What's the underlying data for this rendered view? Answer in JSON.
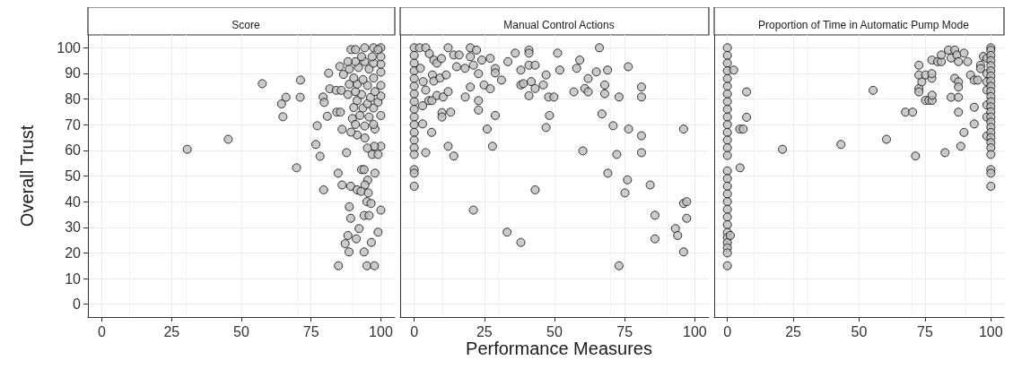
{
  "chart_data": [
    {
      "type": "scatter",
      "title": "Score",
      "ylabel": "Overall Trust",
      "marker": "circle",
      "grid": true,
      "xlim": [
        -5,
        105
      ],
      "xticks": [
        0,
        25,
        50,
        75,
        100
      ],
      "ylim": [
        -5,
        105
      ],
      "yticks": [
        0,
        10,
        20,
        30,
        40,
        50,
        60,
        70,
        80,
        90,
        100
      ],
      "series": [
        {
          "color": "#bebebe",
          "x": [
            30.6,
            45.3,
            57.5,
            71.2,
            66.0,
            71.1,
            64.4,
            64.9,
            69.8,
            77.2,
            76.7,
            78.2,
            79.5,
            81.3,
            79.3,
            79.7,
            80.8,
            81.7,
            84.0,
            85.8,
            84.2,
            85.5,
            86.1,
            87.7,
            84.7,
            86.1,
            89.2,
            91.5,
            93.1,
            94.0,
            95.3,
            97.9,
            94.3,
            92.9,
            95.5,
            95.0,
            96.5,
            88.7,
            100,
            89.2,
            94.0,
            95.8,
            92.2,
            99.0,
            88.2,
            91.2,
            87.2,
            96.6,
            88.6,
            94.0,
            84.8,
            95.0,
            97.7,
            100,
            97.7,
            96.9,
            99,
            95.2,
            94.3,
            97.9,
            91.5,
            89.3,
            89.8,
            90.9,
            94.2,
            97.4,
            100,
            95.8,
            92.5,
            90.3,
            93.6,
            97.4,
            99,
            95.2,
            91.5,
            100,
            96.3,
            93.1,
            88.2,
            90.9,
            97.9,
            100,
            95.2,
            91.5,
            88.7,
            97.4,
            93.6,
            90.3,
            86.6,
            100,
            95.8,
            92,
            88.7,
            85.3,
            100,
            97.4,
            94.2,
            90.9,
            88.2,
            100,
            96.9,
            93.1,
            89.3,
            90.9,
            94.2,
            97.4,
            100,
            99
          ],
          "values": [
            60.4,
            64.3,
            86.0,
            87.4,
            80.7,
            80.7,
            78.1,
            73.1,
            53.2,
            69.6,
            62.3,
            57.7,
            44.6,
            90.1,
            80.8,
            78.7,
            73.3,
            84.0,
            83.4,
            83.4,
            74.9,
            74.9,
            68.2,
            59.1,
            51.1,
            46.5,
            46.0,
            44.6,
            52.5,
            52.5,
            48.4,
            51.1,
            46.5,
            44.0,
            43.4,
            40.0,
            39.3,
            38.0,
            36.7,
            33.5,
            34.6,
            34.6,
            29.5,
            28.1,
            26.8,
            25.5,
            23.6,
            24.1,
            20.4,
            20.4,
            15.0,
            15.0,
            15.0,
            61.6,
            61.6,
            58.4,
            58.4,
            60.9,
            64.8,
            68.3,
            66,
            67.1,
            72.4,
            70.1,
            69.5,
            70.1,
            73.6,
            73,
            73.6,
            76.7,
            76.5,
            76.5,
            78.8,
            78.2,
            79.4,
            81.2,
            80.6,
            81.8,
            81.8,
            82.9,
            82.9,
            85.3,
            85.3,
            85.8,
            85.8,
            88.2,
            87.6,
            88.2,
            89.6,
            90.5,
            91.7,
            92.3,
            91.7,
            92.7,
            93.6,
            94,
            94.6,
            94.6,
            94.6,
            96.5,
            96.5,
            96.5,
            99.3,
            99.3,
            100,
            100,
            100,
            99.3
          ]
        }
      ]
    },
    {
      "type": "scatter",
      "title": "Manual Control Actions",
      "xlabel": "Performance Measures",
      "marker": "circle",
      "grid": true,
      "tick_labels": "x",
      "xlim": [
        -5,
        105
      ],
      "xticks": [
        0,
        25,
        50,
        75,
        100
      ],
      "ylim": [
        -5,
        105
      ],
      "yticks": [
        0,
        10,
        20,
        30,
        40,
        50,
        60,
        70,
        80,
        90,
        100
      ],
      "series": [
        {
          "color": "#bebebe",
          "x": [
            0,
            0,
            0,
            0,
            0,
            0,
            0,
            0,
            0,
            0,
            0,
            0,
            0,
            0,
            0,
            0,
            0,
            0,
            1.9,
            4.1,
            5.4,
            7,
            8.1,
            9.7,
            12.1,
            14.1,
            16,
            20,
            22.2,
            20,
            24.1,
            27.1,
            15.1,
            18.1,
            21.1,
            2.2,
            6.5,
            7,
            9.2,
            11.4,
            3.2,
            4.1,
            5.2,
            6.3,
            8.1,
            10.3,
            12.1,
            3,
            3,
            6.2,
            4.1,
            9.9,
            9.9,
            13,
            12.1,
            14.1,
            18.2,
            20,
            22.9,
            22.9,
            22.9,
            24.9,
            27.1,
            26,
            27.9,
            28.9,
            28.9,
            28.9,
            31.1,
            33.4,
            36,
            38,
            38,
            38.9,
            40.9,
            40.9,
            40.9,
            43.1,
            41.7,
            43.1,
            40.9,
            46,
            47,
            47.9,
            49.8,
            48.2,
            47,
            51.1,
            51.9,
            56.9,
            57.9,
            59,
            60.8,
            62,
            62,
            64.9,
            66,
            68.9,
            67.9,
            67.9,
            66.9,
            70.9,
            73,
            76.3,
            76.4,
            81,
            81,
            81,
            81,
            60.1,
            72.2,
            69,
            76,
            75.1,
            84.1,
            43.1,
            21.1,
            33.1,
            38,
            73,
            85.8,
            85.8,
            93.1,
            93.9,
            96,
            97.1,
            97.1,
            96,
            96
          ],
          "values": [
            100,
            97,
            94,
            91,
            88,
            85,
            82,
            79,
            76,
            73,
            70,
            67,
            64,
            61,
            58.4,
            52.5,
            51.1,
            46,
            100,
            100,
            97.7,
            95.2,
            94,
            95.8,
            100,
            97.2,
            97.2,
            100,
            99.1,
            96.5,
            95.2,
            95.9,
            92.6,
            92,
            93.2,
            92,
            89.4,
            87,
            88.2,
            89.4,
            86.8,
            83.5,
            79.4,
            79.4,
            81.4,
            80.8,
            82.9,
            77.4,
            70.3,
            67,
            59.1,
            74.7,
            73,
            74.9,
            61.6,
            57.8,
            80.8,
            84.7,
            89.9,
            79.4,
            75.7,
            85.5,
            84,
            68.3,
            61.6,
            91.9,
            90.2,
            73.6,
            87.4,
            94.6,
            97.9,
            91.3,
            85.5,
            86,
            99.1,
            97.9,
            93.2,
            93.2,
            86.8,
            84.1,
            81.3,
            85.5,
            89.4,
            80.8,
            80.8,
            73.6,
            68.9,
            97.9,
            91.3,
            82.8,
            92,
            95.2,
            84.1,
            82.8,
            88,
            90.6,
            100,
            91.3,
            85.5,
            82.1,
            74.2,
            69.6,
            80.8,
            92.6,
            68.3,
            84.7,
            80.8,
            65.7,
            59.1,
            59.8,
            58.4,
            51.1,
            48.5,
            43.4,
            46.5,
            44.6,
            36.7,
            28.1,
            24.1,
            15,
            34.7,
            25.5,
            29.5,
            26.8,
            39.3,
            40,
            33.5,
            20.4,
            68.3
          ]
        }
      ]
    },
    {
      "type": "scatter",
      "title": "Proportion of Time in Automatic Pump Mode",
      "marker": "circle",
      "grid": true,
      "tick_labels": "x",
      "xlim": [
        -5,
        105
      ],
      "xticks": [
        0,
        25,
        50,
        75,
        100
      ],
      "ylim": [
        -5,
        105
      ],
      "yticks": [
        0,
        10,
        20,
        30,
        40,
        50,
        60,
        70,
        80,
        90,
        100
      ],
      "series": [
        {
          "color": "#bebebe",
          "x": [
            0,
            0,
            0,
            0,
            0,
            0,
            0,
            0,
            0,
            0,
            0,
            0,
            0,
            0,
            0,
            0,
            0,
            0,
            0,
            0,
            0,
            0,
            0,
            0,
            0,
            0,
            0,
            0,
            0,
            2.4,
            7.3,
            7.3,
            4.7,
            6,
            4.8,
            1.1,
            20.9,
            43.1,
            55.3,
            60.4,
            67.6,
            70.3,
            71.4,
            72.7,
            72.7,
            72.7,
            73.8,
            72.7,
            75.2,
            75.2,
            76.5,
            77.7,
            77.7,
            77.6,
            77.6,
            77.6,
            79.8,
            81.2,
            81.2,
            83.9,
            84.9,
            86.3,
            87.1,
            89.8,
            87.7,
            91.2,
            86.3,
            87.7,
            87.7,
            84.9,
            87.7,
            87.7,
            82.6,
            88.6,
            89.8,
            93.7,
            93.7,
            92.3,
            93.7,
            95,
            96.1,
            96.1,
            97.2,
            98.5,
            98.5,
            98.5,
            98.5,
            98.5,
            98.5,
            98.5,
            100,
            100,
            100,
            100,
            100,
            100,
            100,
            100,
            100,
            100,
            100,
            100,
            100,
            100,
            100,
            100,
            100,
            100,
            100,
            100,
            100,
            100,
            100,
            100,
            100
          ],
          "values": [
            100,
            97,
            94,
            91,
            88,
            85,
            82,
            79,
            76,
            73,
            70,
            67,
            64,
            61,
            58,
            52,
            49,
            46,
            43,
            40,
            37,
            34,
            31,
            28,
            26,
            24,
            22,
            20,
            15,
            91.3,
            82.8,
            72.9,
            68.3,
            68.3,
            53.2,
            26.8,
            60.4,
            62.3,
            83.4,
            64.3,
            74.9,
            74.9,
            57.8,
            93.2,
            84.1,
            82.8,
            86.7,
            89.4,
            89.4,
            79.5,
            79.5,
            79.5,
            81.5,
            88.1,
            89.9,
            95.2,
            94.6,
            94.6,
            97.2,
            99.1,
            96,
            99.1,
            97.2,
            97.9,
            94.6,
            94.6,
            88.1,
            86.7,
            84.7,
            80.7,
            80.7,
            74.9,
            59.1,
            61.6,
            67,
            70.3,
            76.8,
            89.4,
            87.4,
            87.4,
            93.2,
            91.9,
            96.6,
            95.9,
            89.9,
            86.7,
            83.5,
            77.7,
            73,
            65.6,
            100,
            99,
            97,
            95,
            93,
            91,
            89,
            87,
            85,
            83,
            81,
            79,
            77,
            75,
            73,
            71,
            69,
            67,
            65,
            63,
            61,
            58.4,
            52.5,
            51.1,
            46
          ]
        }
      ]
    }
  ]
}
